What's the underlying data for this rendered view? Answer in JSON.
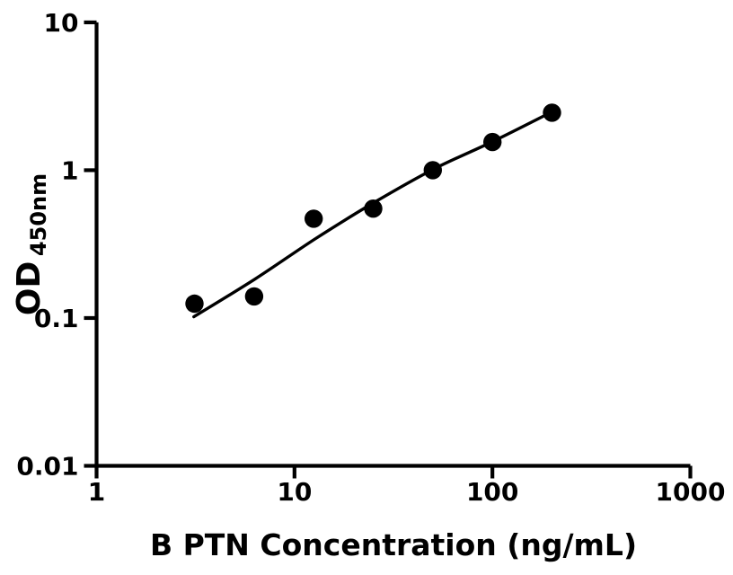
{
  "figure": {
    "background": "#ffffff",
    "ink_color": "#000000"
  },
  "chart_data": {
    "type": "scatter",
    "title": "",
    "xlabel": "B PTN Concentration (ng/mL)",
    "ylabel_main": "OD",
    "ylabel_sub": "450nm",
    "x_scale": "log",
    "y_scale": "log",
    "xlim": [
      1,
      1000
    ],
    "ylim": [
      0.01,
      10
    ],
    "grid": false,
    "legend": "none",
    "x_ticks": [
      {
        "value": 1,
        "label": "1"
      },
      {
        "value": 10,
        "label": "10"
      },
      {
        "value": 100,
        "label": "100"
      },
      {
        "value": 1000,
        "label": "1000"
      }
    ],
    "y_ticks": [
      {
        "value": 0.01,
        "label": "0.01"
      },
      {
        "value": 0.1,
        "label": "0.1"
      },
      {
        "value": 1,
        "label": "1"
      },
      {
        "value": 10,
        "label": "10"
      }
    ],
    "series": [
      {
        "name": "standard-data-points",
        "type": "scatter",
        "marker": "filled-circle",
        "color": "#000000",
        "points": [
          [
            3.125,
            0.125
          ],
          [
            6.25,
            0.14
          ],
          [
            12.5,
            0.47
          ],
          [
            25,
            0.55
          ],
          [
            50,
            1.0
          ],
          [
            100,
            1.55
          ],
          [
            200,
            2.45
          ]
        ]
      },
      {
        "name": "fitted-curve",
        "type": "line",
        "color": "#000000",
        "points": [
          [
            3.1,
            0.102
          ],
          [
            6.3,
            0.183
          ],
          [
            12.6,
            0.34
          ],
          [
            25,
            0.6
          ],
          [
            50,
            1.01
          ],
          [
            100,
            1.56
          ],
          [
            200,
            2.48
          ]
        ]
      }
    ]
  }
}
